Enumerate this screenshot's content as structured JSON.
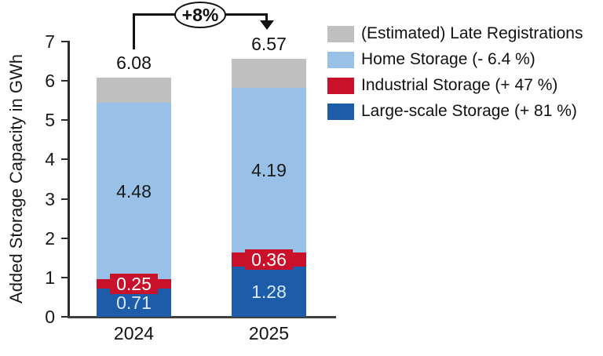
{
  "chart_data": {
    "type": "bar",
    "stacked": true,
    "title": "",
    "ylabel": "Added Storage Capacity in GWh",
    "xlabel": "",
    "ylim": [
      0,
      7
    ],
    "yticks": [
      0,
      1,
      2,
      3,
      4,
      5,
      6,
      7
    ],
    "grid": false,
    "categories": [
      "2024",
      "2025"
    ],
    "series": [
      {
        "name": "Large-scale Storage (+ 81 %)",
        "values": [
          0.71,
          1.28
        ],
        "color": "#1d5ca9",
        "label_color": "#d9e8f8",
        "show_labels": true,
        "label_box": false
      },
      {
        "name": "Industrial Storage (+ 47 %)",
        "values": [
          0.25,
          0.36
        ],
        "color": "#c9112b",
        "label_color": "#ffffff",
        "show_labels": true,
        "label_box": true
      },
      {
        "name": "Home Storage (- 6.4 %)",
        "values": [
          4.48,
          4.19
        ],
        "color": "#99c1e7",
        "label_color": "#1a1a1a",
        "show_labels": true,
        "label_box": false
      },
      {
        "name": "(Estimated) Late Registrations",
        "values": [
          0.64,
          0.74
        ],
        "color": "#bfbfbf",
        "label_color": "#1a1a1a",
        "show_labels": false,
        "label_box": false
      }
    ],
    "totals": [
      "6.08",
      "6.57"
    ],
    "total_change_annotation": "+8%",
    "legend_position": "top-right",
    "legend": [
      {
        "label": "(Estimated) Late Registrations",
        "color": "#bfbfbf"
      },
      {
        "label": "Home Storage (- 6.4 %)",
        "color": "#99c1e7"
      },
      {
        "label": "Industrial Storage (+ 47 %)",
        "color": "#c9112b"
      },
      {
        "label": "Large-scale Storage (+ 81 %)",
        "color": "#1d5ca9"
      }
    ]
  }
}
